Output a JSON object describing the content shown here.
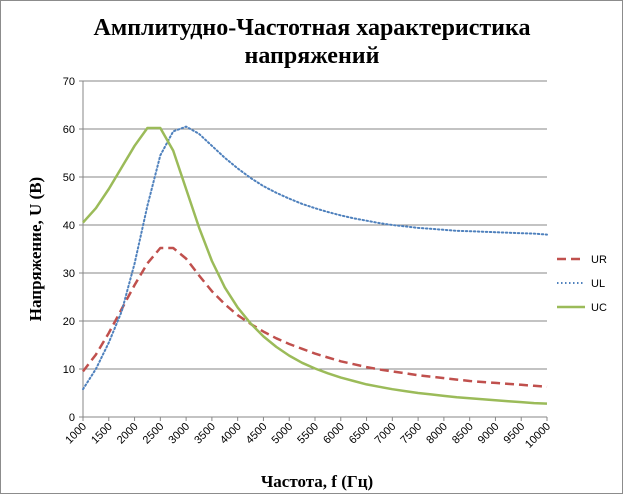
{
  "chart_data": {
    "type": "line",
    "title_lines": [
      "Амплитудно-Частотная характеристика",
      "напряжений"
    ],
    "xlabel": "Частота, f (Гц)",
    "ylabel": "Напряжение, U (В)",
    "x": [
      1000,
      1250,
      1500,
      1750,
      2000,
      2250,
      2500,
      2750,
      3000,
      3250,
      3500,
      3750,
      4000,
      4250,
      4500,
      4750,
      5000,
      5250,
      5500,
      5750,
      6000,
      6250,
      6500,
      6750,
      7000,
      7250,
      7500,
      7750,
      8000,
      8250,
      8500,
      8750,
      9000,
      9250,
      9500,
      9750,
      10000
    ],
    "x_ticks": [
      1000,
      1500,
      2000,
      2500,
      3000,
      3500,
      4000,
      4500,
      5000,
      5500,
      6000,
      6500,
      7000,
      7500,
      8000,
      8500,
      9000,
      9500,
      10000
    ],
    "y_ticks": [
      0,
      10,
      20,
      30,
      40,
      50,
      60,
      70
    ],
    "xlim": [
      1000,
      10000
    ],
    "ylim": [
      0,
      70
    ],
    "grid": "horizontal",
    "legend_position": "right",
    "series": [
      {
        "name": "UR",
        "color": "#c0504d",
        "style": "dashed",
        "values": [
          9.5,
          13,
          17.5,
          22.5,
          27.5,
          32,
          35.2,
          35.2,
          33,
          29.5,
          26.2,
          23.5,
          21.2,
          19.4,
          17.8,
          16.4,
          15.2,
          14.2,
          13.2,
          12.4,
          11.6,
          11,
          10.4,
          9.9,
          9.5,
          9.1,
          8.7,
          8.4,
          8.1,
          7.8,
          7.5,
          7.3,
          7.1,
          6.9,
          6.7,
          6.5,
          6.3
        ]
      },
      {
        "name": "UL",
        "color": "#4f81bd",
        "style": "dotted",
        "values": [
          5.8,
          10,
          15.5,
          22,
          32,
          44,
          54.5,
          59.5,
          60.5,
          59,
          56.5,
          54,
          51.8,
          49.8,
          48.1,
          46.7,
          45.5,
          44.4,
          43.5,
          42.7,
          42,
          41.4,
          40.9,
          40.4,
          40,
          39.7,
          39.4,
          39.2,
          39,
          38.8,
          38.7,
          38.6,
          38.5,
          38.4,
          38.3,
          38.2,
          38
        ]
      },
      {
        "name": "UC",
        "color": "#9bbb59",
        "style": "solid",
        "values": [
          40.5,
          43.5,
          47.5,
          52,
          56.5,
          60.2,
          60.2,
          55.5,
          47.5,
          39.5,
          32.5,
          27,
          22.8,
          19.5,
          16.8,
          14.6,
          12.8,
          11.3,
          10.1,
          9.1,
          8.2,
          7.5,
          6.8,
          6.3,
          5.8,
          5.4,
          5,
          4.7,
          4.4,
          4.1,
          3.9,
          3.7,
          3.5,
          3.3,
          3.1,
          2.9,
          2.8
        ]
      }
    ]
  }
}
